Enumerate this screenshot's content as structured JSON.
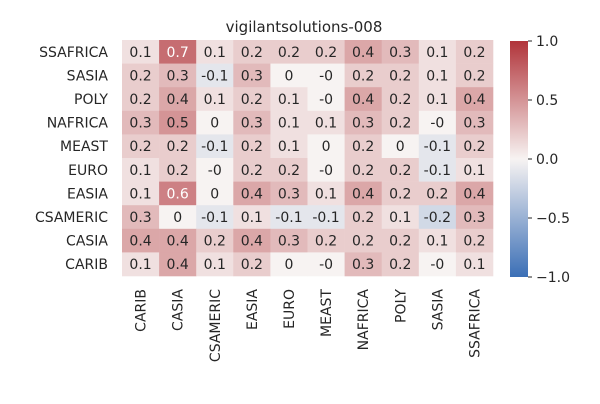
{
  "chart_data": {
    "type": "heatmap",
    "title": "vigilantsolutions-008",
    "rows": [
      "SSAFRICA",
      "SASIA",
      "POLY",
      "NAFRICA",
      "MEAST",
      "EURO",
      "EASIA",
      "CSAMERIC",
      "CASIA",
      "CARIB"
    ],
    "columns": [
      "CARIB",
      "CASIA",
      "CSAMERIC",
      "EASIA",
      "EURO",
      "MEAST",
      "NAFRICA",
      "POLY",
      "SASIA",
      "SSAFRICA"
    ],
    "values": [
      [
        0.1,
        0.7,
        0.1,
        0.2,
        0.2,
        0.2,
        0.4,
        0.3,
        0.1,
        0.2
      ],
      [
        0.2,
        0.3,
        -0.1,
        0.3,
        0,
        0,
        0.2,
        0.2,
        0.1,
        0.2
      ],
      [
        0.2,
        0.4,
        0.1,
        0.2,
        0.1,
        0,
        0.4,
        0.2,
        0.1,
        0.4
      ],
      [
        0.3,
        0.5,
        0,
        0.3,
        0.1,
        0.1,
        0.3,
        0.2,
        0,
        0.3
      ],
      [
        0.2,
        0.2,
        -0.1,
        0.2,
        0.1,
        0,
        0.2,
        0,
        -0.1,
        0.2
      ],
      [
        0.1,
        0.2,
        0,
        0.2,
        0.2,
        0,
        0.2,
        0.2,
        -0.1,
        0.1
      ],
      [
        0.1,
        0.6,
        0,
        0.4,
        0.3,
        0.1,
        0.4,
        0.2,
        0.2,
        0.4
      ],
      [
        0.3,
        0,
        -0.1,
        0.1,
        -0.1,
        -0.1,
        0.2,
        0.1,
        -0.2,
        0.3
      ],
      [
        0.4,
        0.4,
        0.2,
        0.4,
        0.3,
        0.2,
        0.2,
        0.2,
        0.1,
        0.2
      ],
      [
        0.1,
        0.4,
        0.1,
        0.2,
        0,
        0,
        0.3,
        0.2,
        0,
        0.1
      ]
    ],
    "labels": [
      [
        "0.1",
        "0.7",
        "0.1",
        "0.2",
        "0.2",
        "0.2",
        "0.4",
        "0.3",
        "0.1",
        "0.2"
      ],
      [
        "0.2",
        "0.3",
        "-0.1",
        "0.3",
        "0",
        "-0",
        "0.2",
        "0.2",
        "0.1",
        "0.2"
      ],
      [
        "0.2",
        "0.4",
        "0.1",
        "0.2",
        "0.1",
        "-0",
        "0.4",
        "0.2",
        "0.1",
        "0.4"
      ],
      [
        "0.3",
        "0.5",
        "0",
        "0.3",
        "0.1",
        "0.1",
        "0.3",
        "0.2",
        "-0",
        "0.3"
      ],
      [
        "0.2",
        "0.2",
        "-0.1",
        "0.2",
        "0.1",
        "0",
        "0.2",
        "0",
        "-0.1",
        "0.2"
      ],
      [
        "0.1",
        "0.2",
        "-0",
        "0.2",
        "0.2",
        "-0",
        "0.2",
        "0.2",
        "-0.1",
        "0.1"
      ],
      [
        "0.1",
        "0.6",
        "0",
        "0.4",
        "0.3",
        "0.1",
        "0.4",
        "0.2",
        "0.2",
        "0.4"
      ],
      [
        "0.3",
        "0",
        "-0.1",
        "0.1",
        "-0.1",
        "-0.1",
        "0.2",
        "0.1",
        "-0.2",
        "0.3"
      ],
      [
        "0.4",
        "0.4",
        "0.2",
        "0.4",
        "0.3",
        "0.2",
        "0.2",
        "0.2",
        "0.1",
        "0.2"
      ],
      [
        "0.1",
        "0.4",
        "0.1",
        "0.2",
        "0",
        "-0",
        "0.3",
        "0.2",
        "-0",
        "0.1"
      ]
    ],
    "colorbar": {
      "vmin": -1.0,
      "vmax": 1.0,
      "ticks": [
        1.0,
        0.5,
        0.0,
        -0.5,
        -1.0
      ],
      "tick_labels": [
        "1.0",
        "0.5",
        "0.0",
        "−0.5",
        "−1.0"
      ],
      "colormap": "diverging blue-white-red",
      "low_color": "#3b6fb6",
      "mid_color": "#f7f3f2",
      "high_color": "#b1343a"
    },
    "grid": false
  }
}
